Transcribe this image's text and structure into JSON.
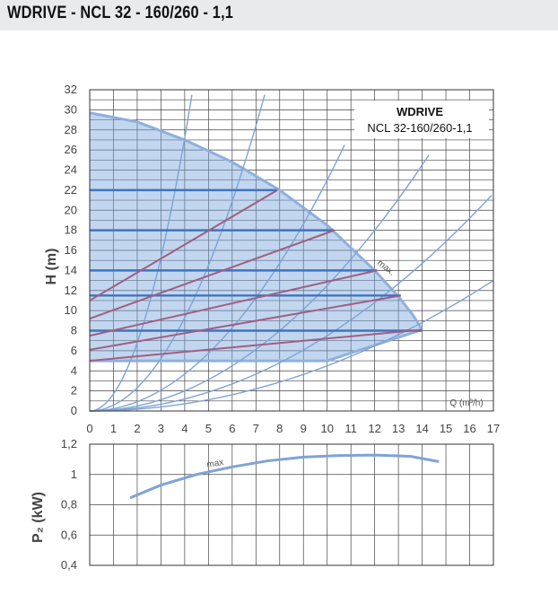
{
  "header": {
    "title": "WDRIVE - NCL 32 - 160/260 - 1,1"
  },
  "chart_data": [
    {
      "type": "line",
      "model_lines": [
        "WDRIVE",
        "NCL 32-160/260-1,1"
      ],
      "xlabel": "Q (m³/h)",
      "ylabel": "H (m)",
      "xlim": [
        0,
        17
      ],
      "ylim": [
        0,
        32
      ],
      "x_ticks": [
        0,
        1,
        2,
        3,
        4,
        5,
        6,
        7,
        8,
        9,
        10,
        11,
        12,
        13,
        14,
        15,
        16,
        17
      ],
      "y_ticks": [
        0,
        2,
        4,
        6,
        8,
        10,
        12,
        14,
        16,
        18,
        20,
        22,
        24,
        26,
        28,
        30,
        32
      ],
      "grid": true,
      "max_label": "max.",
      "operating_area": {
        "top_curve": [
          [
            0,
            29.7
          ],
          [
            2,
            28.8
          ],
          [
            4,
            27.0
          ],
          [
            6,
            24.8
          ],
          [
            8,
            22.0
          ],
          [
            10,
            18.5
          ],
          [
            12,
            14.0
          ],
          [
            13,
            11.4
          ],
          [
            13.6,
            9.6
          ],
          [
            14,
            8.1
          ]
        ],
        "lower_boundary": [
          [
            14,
            8.1
          ],
          [
            10,
            5.0
          ],
          [
            0,
            5.0
          ]
        ]
      },
      "constant_pressure_levels": [
        {
          "H": 22,
          "x_end": 7.9
        },
        {
          "H": 18,
          "x_end": 10.3
        },
        {
          "H": 14,
          "x_end": 12.1
        },
        {
          "H": 11.5,
          "x_end": 13.1
        },
        {
          "H": 8,
          "x_end": 14.0
        }
      ],
      "proportional_lines": [
        {
          "x": [
            0,
            7.9
          ],
          "y": [
            11.0,
            22.0
          ]
        },
        {
          "x": [
            0,
            10.3
          ],
          "y": [
            9.2,
            18.0
          ]
        },
        {
          "x": [
            0,
            12.1
          ],
          "y": [
            7.5,
            14.0
          ]
        },
        {
          "x": [
            0,
            13.1
          ],
          "y": [
            6.1,
            11.5
          ]
        },
        {
          "x": [
            0,
            14.0
          ],
          "y": [
            5.0,
            8.1
          ]
        }
      ],
      "system_curves_k": [
        1.7,
        0.58,
        0.23,
        0.125,
        0.075,
        0.045
      ],
      "system_curve_max_y": [
        31.5,
        31.5,
        26.5,
        25.5,
        21.5,
        17.0
      ]
    },
    {
      "type": "line",
      "ylabel": "P₂ (kW)",
      "xlim": [
        0,
        17
      ],
      "ylim": [
        0.4,
        1.2
      ],
      "y_tick_labels": [
        "0,4",
        "0,6",
        "0,8",
        "1",
        "1,2"
      ],
      "y_ticks": [
        0.4,
        0.6,
        0.8,
        1.0,
        1.2
      ],
      "grid": true,
      "max_label": "max",
      "series": [
        {
          "x": [
            1.7,
            3,
            4.5,
            6,
            7.5,
            9,
            10.5,
            12,
            13.5,
            14.7
          ],
          "y": [
            0.845,
            0.93,
            1.0,
            1.05,
            1.09,
            1.115,
            1.125,
            1.128,
            1.12,
            1.085
          ]
        }
      ]
    }
  ]
}
